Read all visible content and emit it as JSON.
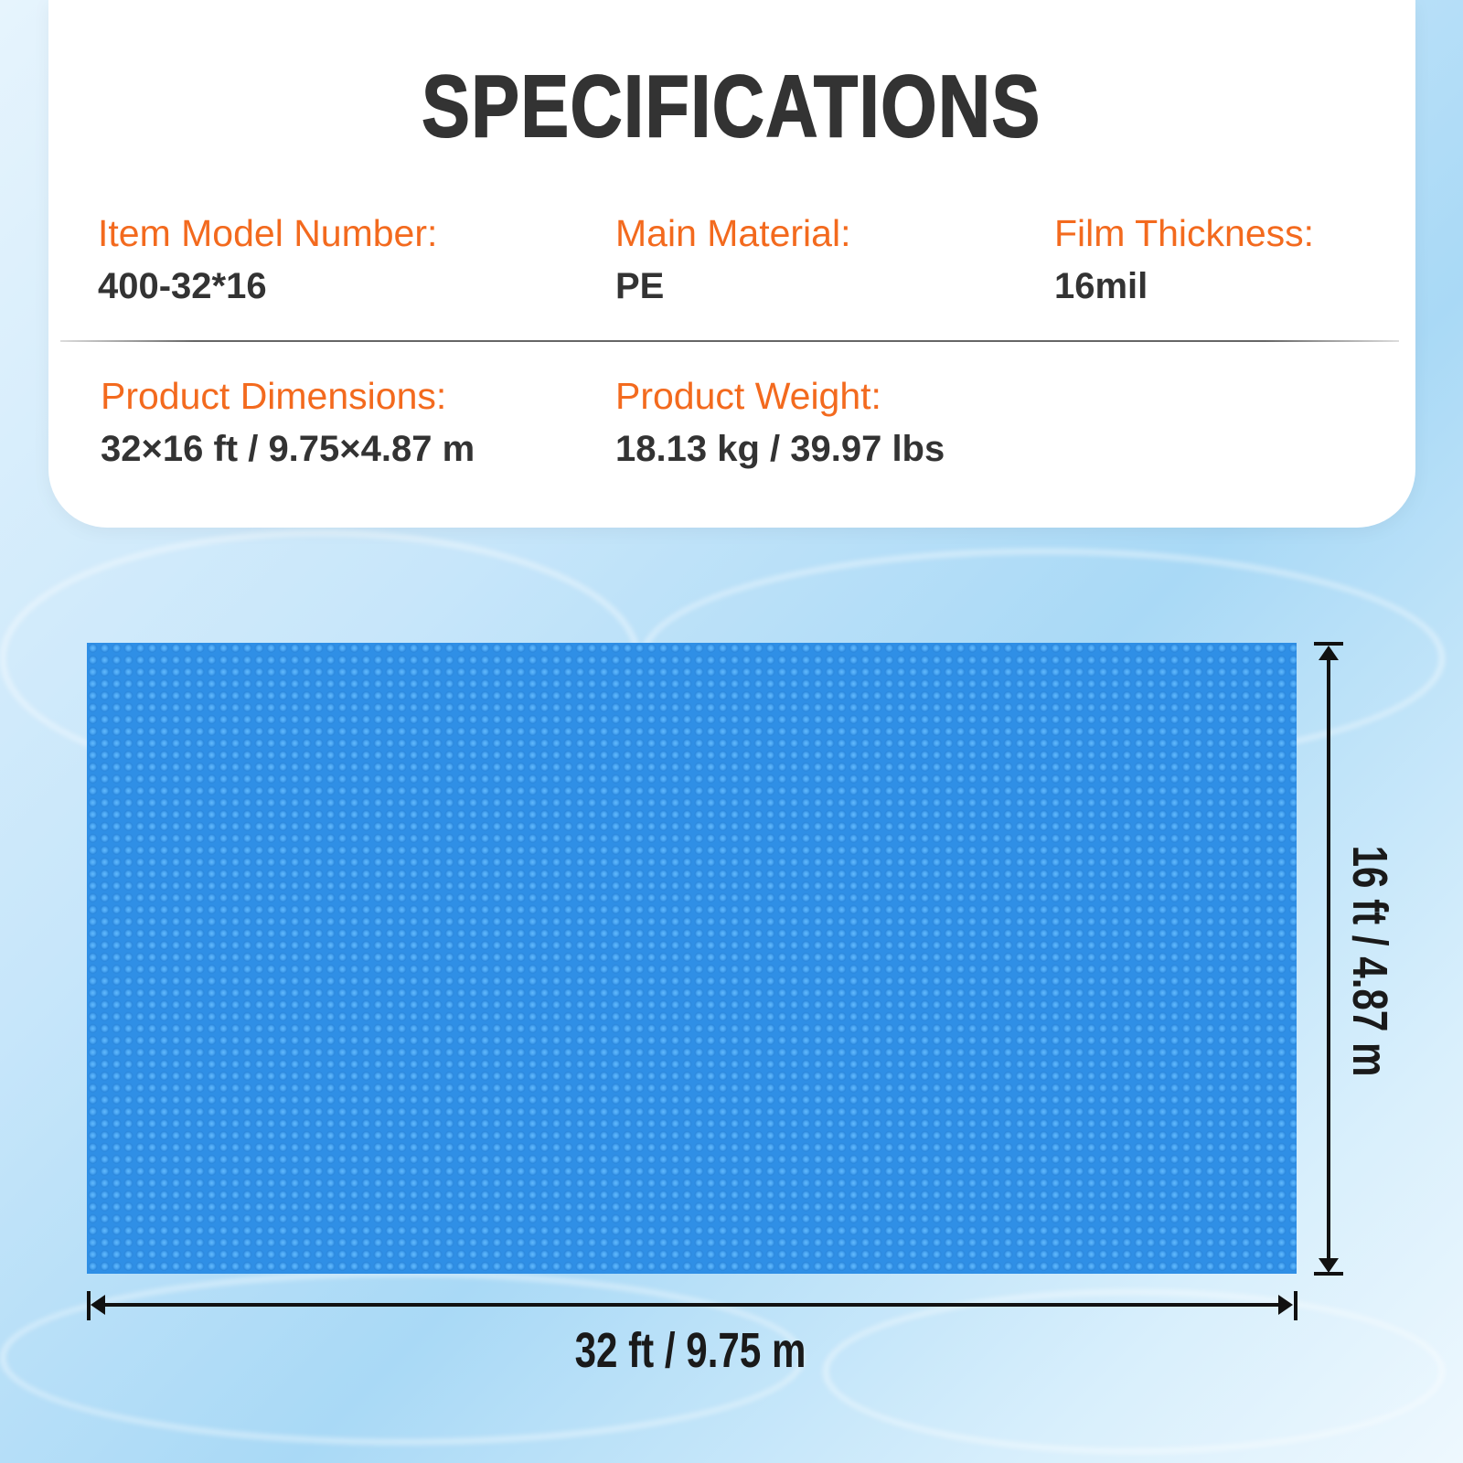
{
  "title": "SPECIFICATIONS",
  "specs": [
    {
      "label": "Item Model Number:",
      "value": "400-32*16"
    },
    {
      "label": "Main Material:",
      "value": "PE"
    },
    {
      "label": "Film Thickness:",
      "value": "16mil"
    },
    {
      "label": "Product Dimensions:",
      "value": "32×16 ft / 9.75×4.87 m"
    },
    {
      "label": "Product Weight:",
      "value": "18.13 kg / 39.97 lbs"
    }
  ],
  "dimensions": {
    "width": "32 ft / 9.75 m",
    "height": "16 ft / 4.87 m"
  },
  "colors": {
    "label": "#f36a1e",
    "value": "#333333",
    "cover": "#2f8fe6"
  }
}
